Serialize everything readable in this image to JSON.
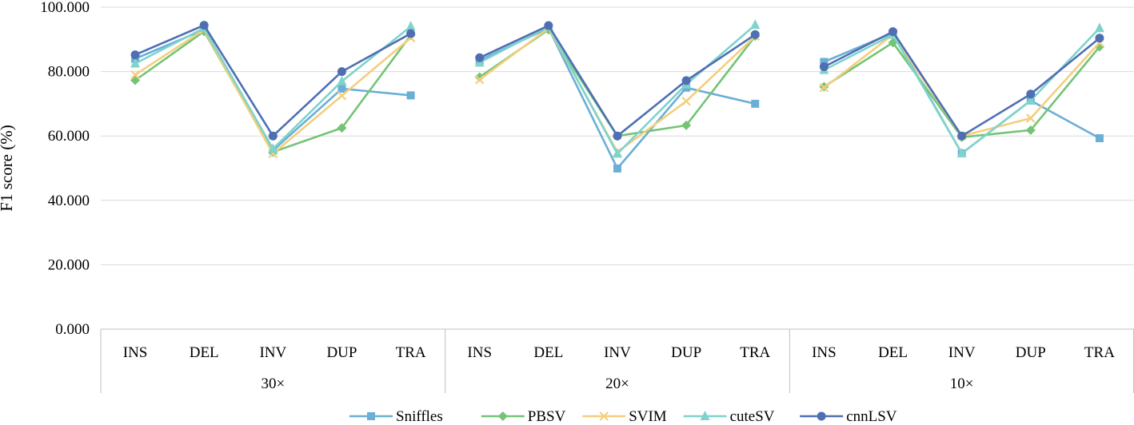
{
  "chart_data": {
    "type": "line",
    "title": "",
    "xlabel": "",
    "ylabel": "F1 score (%)",
    "ylim": [
      0,
      100
    ],
    "yticks": [
      "0.000",
      "20.000",
      "40.000",
      "60.000",
      "80.000",
      "100.000"
    ],
    "groups": [
      {
        "label": "30×",
        "categories": [
          "INS",
          "DEL",
          "INV",
          "DUP",
          "TRA"
        ]
      },
      {
        "label": "20×",
        "categories": [
          "INS",
          "DEL",
          "INV",
          "DUP",
          "TRA"
        ]
      },
      {
        "label": "10×",
        "categories": [
          "INS",
          "DEL",
          "INV",
          "DUP",
          "TRA"
        ]
      }
    ],
    "legend_position": "bottom",
    "series": [
      {
        "name": "Sniffles",
        "color": "#6baed6",
        "marker": "square",
        "groups": [
          [
            84.0,
            93.0,
            55.5,
            74.7,
            72.6
          ],
          [
            83.5,
            93.5,
            49.9,
            75.0,
            70.0
          ],
          [
            83.0,
            92.0,
            54.6,
            71.0,
            59.3
          ]
        ]
      },
      {
        "name": "PBSV",
        "color": "#74c476",
        "marker": "diamond",
        "groups": [
          [
            77.3,
            92.5,
            55.0,
            62.5,
            91.3
          ],
          [
            78.3,
            93.0,
            60.0,
            63.3,
            91.0
          ],
          [
            75.3,
            89.0,
            59.6,
            61.8,
            87.7
          ]
        ]
      },
      {
        "name": "SVIM",
        "color": "#f3cf7e",
        "marker": "x",
        "groups": [
          [
            79.0,
            93.0,
            54.5,
            72.5,
            90.5
          ],
          [
            77.5,
            93.5,
            55.0,
            70.8,
            91.0
          ],
          [
            75.0,
            91.5,
            60.0,
            65.5,
            89.0
          ]
        ]
      },
      {
        "name": "cuteSV",
        "color": "#7fd3cc",
        "marker": "triangle",
        "groups": [
          [
            82.5,
            93.5,
            56.0,
            77.0,
            94.0
          ],
          [
            82.8,
            94.0,
            54.5,
            76.0,
            94.5
          ],
          [
            80.5,
            91.5,
            54.6,
            71.0,
            93.5
          ]
        ]
      },
      {
        "name": "cnnLSV",
        "color": "#4f6fb3",
        "marker": "circle",
        "groups": [
          [
            85.2,
            94.4,
            60.0,
            80.0,
            91.8
          ],
          [
            84.3,
            94.3,
            60.0,
            77.2,
            91.5
          ],
          [
            81.5,
            92.4,
            60.0,
            73.0,
            90.4
          ]
        ]
      }
    ]
  }
}
